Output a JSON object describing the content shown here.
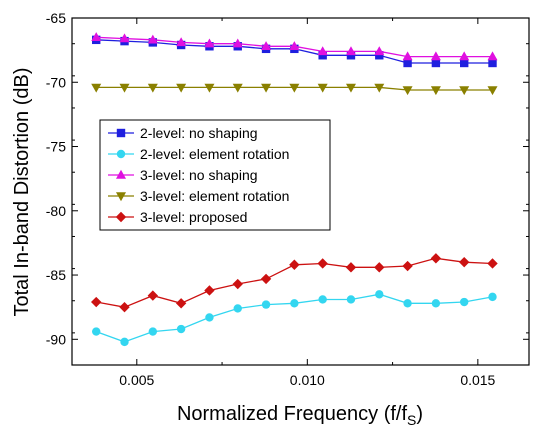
{
  "chart_data": {
    "type": "line",
    "title": "",
    "xlabel": "Normalized Frequency (f/f",
    "xlabel_sub": "S",
    "xlabel_close": ")",
    "ylabel": "Total In-band Distortion (dB)",
    "xlim": [
      0.0031,
      0.0165
    ],
    "ylim": [
      -92,
      -65
    ],
    "xticks": [
      0.005,
      0.01,
      0.015
    ],
    "xtick_labels": [
      "0.005",
      "0.010",
      "0.015"
    ],
    "yticks": [
      -65,
      -70,
      -75,
      -80,
      -85,
      -90
    ],
    "ytick_labels": [
      "-65",
      "-70",
      "-75",
      "-80",
      "-85",
      "-90"
    ],
    "grid": false,
    "legend_position": "center-left",
    "x": [
      0.00381,
      0.00464,
      0.00547,
      0.0063,
      0.00713,
      0.00796,
      0.00879,
      0.00962,
      0.01045,
      0.01128,
      0.01211,
      0.01294,
      0.01377,
      0.0146,
      0.01543
    ],
    "series": [
      {
        "name": "2-level: no shaping",
        "marker": "square",
        "color": "#1f1fdf",
        "values": [
          -66.7,
          -66.8,
          -66.9,
          -67.1,
          -67.2,
          -67.2,
          -67.4,
          -67.4,
          -67.9,
          -67.9,
          -67.9,
          -68.5,
          -68.5,
          -68.5,
          -68.5
        ]
      },
      {
        "name": "2-level: element rotation",
        "marker": "circle",
        "color": "#33d6f0",
        "values": [
          -89.4,
          -90.2,
          -89.4,
          -89.2,
          -88.3,
          -87.6,
          -87.3,
          -87.2,
          -86.9,
          -86.9,
          -86.5,
          -87.2,
          -87.2,
          -87.1,
          -86.7
        ]
      },
      {
        "name": "3-level: no shaping",
        "marker": "triangle-up",
        "color": "#e010e0",
        "values": [
          -66.5,
          -66.6,
          -66.7,
          -66.9,
          -67.0,
          -67.0,
          -67.2,
          -67.2,
          -67.6,
          -67.6,
          -67.6,
          -68.0,
          -68.0,
          -68.0,
          -68.0
        ]
      },
      {
        "name": "3-level: element rotation",
        "marker": "triangle-down",
        "color": "#8a8000",
        "values": [
          -70.4,
          -70.4,
          -70.4,
          -70.4,
          -70.4,
          -70.4,
          -70.4,
          -70.4,
          -70.4,
          -70.4,
          -70.4,
          -70.6,
          -70.6,
          -70.6,
          -70.6
        ]
      },
      {
        "name": "3-level: proposed",
        "marker": "diamond",
        "color": "#cc1111",
        "values": [
          -87.1,
          -87.5,
          -86.6,
          -87.2,
          -86.2,
          -85.7,
          -85.3,
          -84.2,
          -84.1,
          -84.4,
          -84.4,
          -84.3,
          -83.7,
          -84.0,
          -84.1
        ]
      }
    ]
  }
}
